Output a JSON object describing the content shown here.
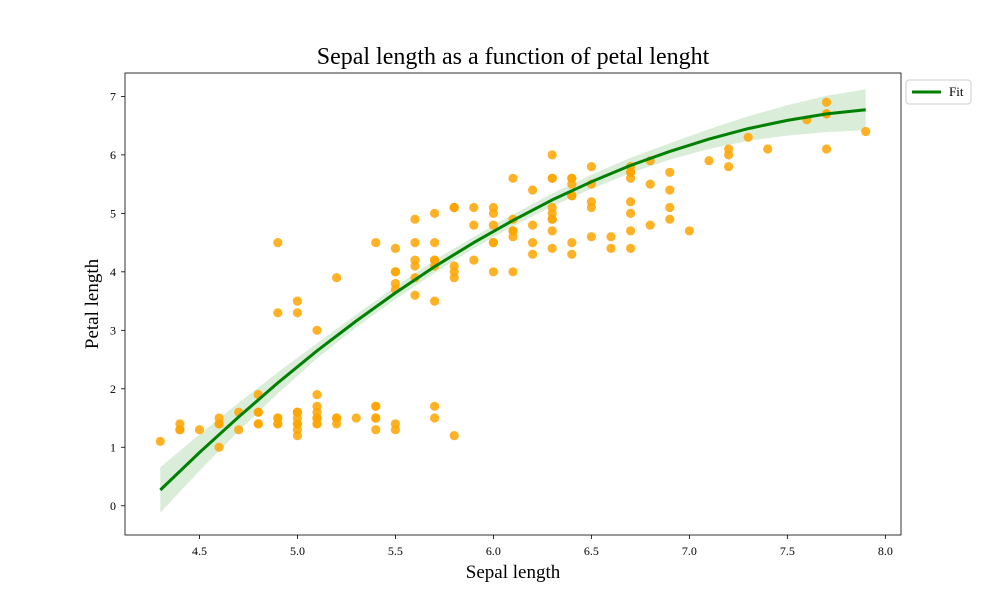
{
  "chart_data": {
    "type": "scatter",
    "title": "Sepal length as a function of petal lenght",
    "xlabel": "Sepal length",
    "ylabel": "Petal length",
    "xlim": [
      4.12,
      8.08
    ],
    "ylim": [
      -0.5,
      7.4
    ],
    "xticks": [
      "4.5",
      "5.0",
      "5.5",
      "6.0",
      "6.5",
      "7.0",
      "7.5",
      "8.0"
    ],
    "yticks": [
      "0",
      "1",
      "2",
      "3",
      "4",
      "5",
      "6",
      "7"
    ],
    "grid": false,
    "legend": {
      "placement": "outside-top-right",
      "entries": [
        "Fit"
      ]
    },
    "colors": {
      "points": "#FFA500",
      "fit": "#008000",
      "band": "#cfe8cf"
    },
    "series": [
      {
        "kind": "points",
        "x": [
          4.3,
          4.4,
          4.4,
          4.4,
          4.5,
          4.6,
          4.6,
          4.6,
          4.6,
          4.7,
          4.7,
          4.8,
          4.8,
          4.8,
          4.8,
          4.8,
          4.9,
          4.9,
          4.9,
          4.9,
          4.9,
          4.9,
          5.0,
          5.0,
          5.0,
          5.0,
          5.0,
          5.0,
          5.0,
          5.0,
          5.0,
          5.0,
          5.1,
          5.1,
          5.1,
          5.1,
          5.1,
          5.1,
          5.1,
          5.1,
          5.1,
          5.2,
          5.2,
          5.2,
          5.2,
          5.3,
          5.4,
          5.4,
          5.4,
          5.4,
          5.4,
          5.4,
          5.5,
          5.5,
          5.5,
          5.5,
          5.5,
          5.5,
          5.5,
          5.6,
          5.6,
          5.6,
          5.6,
          5.6,
          5.6,
          5.7,
          5.7,
          5.7,
          5.7,
          5.7,
          5.7,
          5.7,
          5.7,
          5.8,
          5.8,
          5.8,
          5.8,
          5.8,
          5.8,
          5.8,
          5.9,
          5.9,
          5.9,
          6.0,
          6.0,
          6.0,
          6.0,
          6.0,
          6.0,
          6.1,
          6.1,
          6.1,
          6.1,
          6.1,
          6.1,
          6.2,
          6.2,
          6.2,
          6.2,
          6.3,
          6.3,
          6.3,
          6.3,
          6.3,
          6.3,
          6.3,
          6.3,
          6.3,
          6.4,
          6.4,
          6.4,
          6.4,
          6.4,
          6.4,
          6.4,
          6.5,
          6.5,
          6.5,
          6.5,
          6.5,
          6.6,
          6.6,
          6.7,
          6.7,
          6.7,
          6.7,
          6.7,
          6.7,
          6.7,
          6.7,
          6.8,
          6.8,
          6.8,
          6.9,
          6.9,
          6.9,
          6.9,
          7.0,
          7.1,
          7.2,
          7.2,
          7.2,
          7.3,
          7.4,
          7.6,
          7.7,
          7.7,
          7.7,
          7.7,
          7.9
        ],
        "y": [
          1.1,
          1.4,
          1.3,
          1.3,
          1.3,
          1.4,
          1.0,
          1.4,
          1.5,
          1.3,
          1.6,
          1.6,
          1.4,
          1.9,
          1.6,
          1.4,
          1.4,
          1.5,
          1.5,
          1.4,
          3.3,
          4.5,
          1.4,
          1.6,
          1.5,
          1.2,
          1.3,
          1.6,
          1.4,
          1.6,
          3.5,
          3.3,
          1.4,
          1.5,
          1.7,
          1.5,
          1.9,
          1.5,
          1.6,
          1.4,
          3.0,
          1.5,
          1.4,
          1.5,
          3.9,
          1.5,
          1.7,
          1.5,
          1.7,
          1.5,
          1.3,
          4.5,
          1.4,
          1.3,
          4.0,
          4.4,
          3.8,
          3.7,
          4.0,
          4.1,
          4.5,
          3.6,
          3.9,
          4.2,
          4.9,
          1.5,
          1.7,
          4.5,
          3.5,
          4.2,
          4.1,
          4.2,
          5.0,
          1.2,
          4.1,
          4.0,
          3.9,
          5.1,
          5.1,
          5.1,
          4.8,
          4.2,
          5.1,
          4.5,
          4.0,
          4.5,
          5.1,
          4.8,
          5.0,
          4.7,
          4.0,
          4.7,
          4.9,
          5.6,
          4.6,
          4.5,
          4.3,
          4.8,
          5.4,
          4.7,
          4.4,
          4.9,
          5.6,
          6.0,
          5.1,
          5.6,
          5.0,
          4.9,
          4.5,
          4.3,
          5.6,
          5.3,
          5.5,
          5.3,
          5.6,
          4.6,
          5.8,
          5.1,
          5.5,
          5.2,
          4.6,
          4.4,
          4.4,
          5.0,
          5.6,
          4.7,
          5.8,
          5.7,
          5.7,
          5.2,
          4.8,
          5.5,
          5.9,
          4.9,
          5.4,
          5.7,
          5.1,
          4.7,
          5.9,
          5.8,
          6.1,
          6.0,
          6.3,
          6.1,
          6.6,
          6.7,
          6.9,
          6.7,
          6.1,
          6.4
        ]
      },
      {
        "name": "Fit",
        "kind": "fit",
        "x": [
          4.3,
          4.5,
          4.7,
          4.9,
          5.1,
          5.3,
          5.5,
          5.7,
          5.9,
          6.1,
          6.3,
          6.5,
          6.7,
          6.9,
          7.1,
          7.3,
          7.5,
          7.7,
          7.9
        ],
        "y": [
          0.27,
          0.91,
          1.52,
          2.1,
          2.65,
          3.16,
          3.64,
          4.09,
          4.5,
          4.88,
          5.23,
          5.54,
          5.82,
          6.06,
          6.27,
          6.45,
          6.59,
          6.7,
          6.77
        ],
        "lower": [
          -0.12,
          0.6,
          1.28,
          1.92,
          2.52,
          3.05,
          3.53,
          3.98,
          4.4,
          4.78,
          5.12,
          5.42,
          5.69,
          5.92,
          6.1,
          6.24,
          6.33,
          6.39,
          6.42
        ],
        "upper": [
          0.66,
          1.22,
          1.76,
          2.28,
          2.78,
          3.27,
          3.75,
          4.2,
          4.6,
          4.98,
          5.34,
          5.66,
          5.95,
          6.2,
          6.44,
          6.66,
          6.85,
          7.01,
          7.12
        ]
      }
    ]
  }
}
